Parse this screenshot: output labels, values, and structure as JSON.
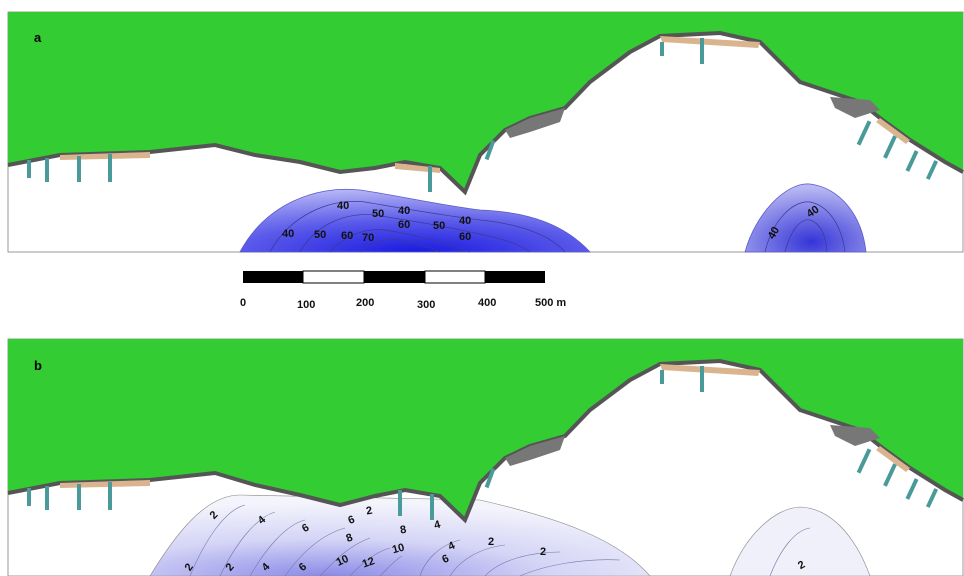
{
  "panels": [
    {
      "letter": "a",
      "contour_labels": [
        "40",
        "50",
        "40",
        "50",
        "60",
        "40",
        "60",
        "70",
        "40",
        "50",
        "60",
        "40",
        "40"
      ]
    },
    {
      "letter": "b",
      "contour_labels": [
        "2",
        "4",
        "6",
        "6",
        "8",
        "10",
        "12",
        "2",
        "2",
        "4",
        "6",
        "8",
        "4",
        "2",
        "10",
        "4",
        "6",
        "2",
        "2",
        "2"
      ]
    }
  ],
  "scale_bar": {
    "labels": [
      "0",
      "100",
      "200",
      "300",
      "400",
      "500 m"
    ]
  },
  "colors": {
    "land": "#33cc33",
    "coast": "#555555",
    "beach": "#d9b48f",
    "groyne": "#4a9a9a",
    "contour_a": "#3a3acc",
    "contour_b": "#c8c8f0"
  }
}
